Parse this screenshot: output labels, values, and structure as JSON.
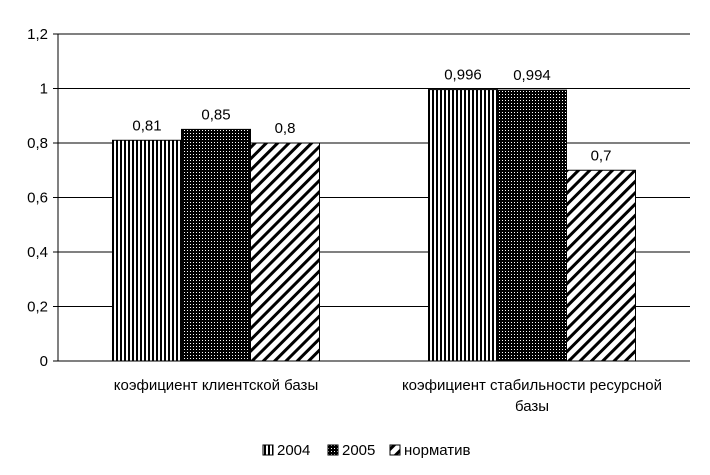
{
  "chart_data": {
    "type": "bar",
    "categories": [
      [
        "коэфициент клиентской базы"
      ],
      [
        "коэфициент стабильности ресурсной",
        "базы"
      ]
    ],
    "series": [
      {
        "name": "2004",
        "values": [
          0.81,
          0.996
        ],
        "labels": [
          "0,81",
          "0,996"
        ],
        "pattern": "vertical-lines"
      },
      {
        "name": "2005",
        "values": [
          0.85,
          0.994
        ],
        "labels": [
          "0,85",
          "0,994"
        ],
        "pattern": "dots"
      },
      {
        "name": "норматив",
        "values": [
          0.8,
          0.7
        ],
        "labels": [
          "0,8",
          "0,7"
        ],
        "pattern": "diagonal-lines"
      }
    ],
    "yticks": [
      {
        "value": 0,
        "label": "0"
      },
      {
        "value": 0.2,
        "label": "0,2"
      },
      {
        "value": 0.4,
        "label": "0,4"
      },
      {
        "value": 0.6,
        "label": "0,6"
      },
      {
        "value": 0.8,
        "label": "0,8"
      },
      {
        "value": 1.0,
        "label": "1"
      },
      {
        "value": 1.2,
        "label": "1,2"
      }
    ],
    "ylim": [
      0,
      1.2
    ],
    "grid": true,
    "legend_position": "bottom"
  }
}
